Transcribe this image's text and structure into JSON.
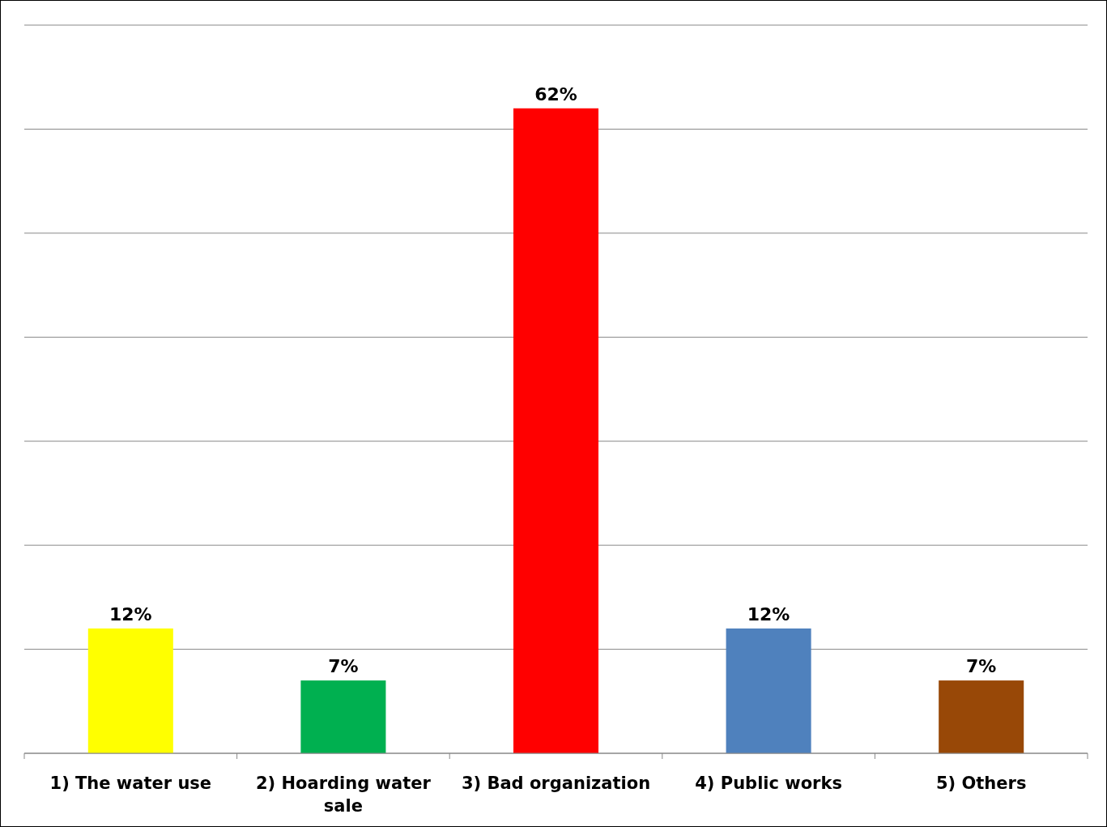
{
  "chart_data": {
    "type": "bar",
    "categories": [
      "1) The water use",
      "2) Hoarding water sale",
      "3) Bad organization",
      "4) Public works",
      "5) Others"
    ],
    "values": [
      12,
      7,
      62,
      12,
      7
    ],
    "colors": [
      "#ffff00",
      "#00b050",
      "#ff0000",
      "#4f81bd",
      "#984807"
    ],
    "value_labels": [
      "12%",
      "7%",
      "62%",
      "12%",
      "7%"
    ],
    "ylim": [
      0,
      70
    ],
    "yticks": [
      {
        "value": 0,
        "label": null
      },
      {
        "value": 10,
        "label": null
      },
      {
        "value": 20,
        "label": null
      },
      {
        "value": 30,
        "label": null
      },
      {
        "value": 40,
        "label": null
      },
      {
        "value": 50,
        "label": null
      },
      {
        "value": 60,
        "label": null
      },
      {
        "value": 70,
        "label": null
      }
    ],
    "grid": "y",
    "tick_labels": "x"
  }
}
